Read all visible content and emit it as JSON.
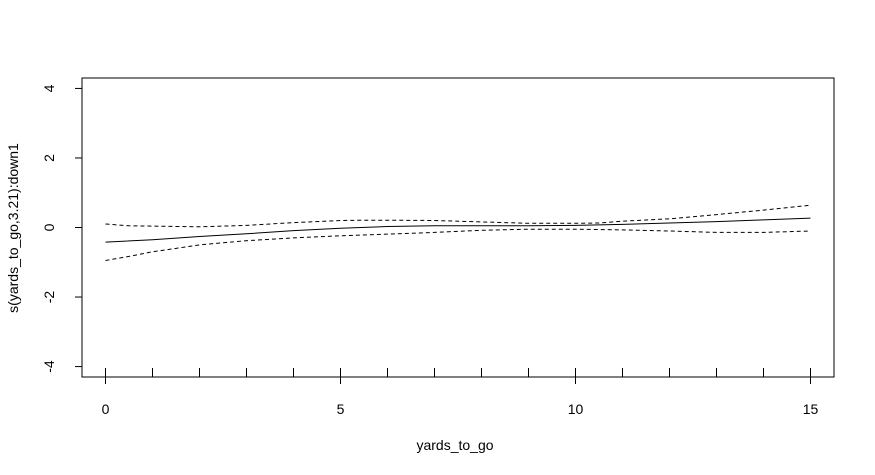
{
  "chart_data": {
    "type": "line",
    "xlabel": "yards_to_go",
    "ylabel": "s(yards_to_go,3.21):down1",
    "xlim": [
      -0.5,
      15.5
    ],
    "ylim": [
      -4.3,
      4.3
    ],
    "x_ticks": [
      0,
      5,
      10,
      15
    ],
    "x_tick_labels": [
      "0",
      "5",
      "10",
      "15"
    ],
    "x_rug": [
      0,
      1,
      2,
      3,
      4,
      5,
      6,
      7,
      8,
      9,
      10,
      11,
      12,
      13,
      14,
      15
    ],
    "y_ticks": [
      -4,
      -2,
      0,
      2,
      4
    ],
    "y_tick_labels": [
      "-4",
      "-2",
      "0",
      "2",
      "4"
    ],
    "grid": false,
    "series": [
      {
        "role": "estimate",
        "style": "solid",
        "x": [
          0,
          1,
          2,
          3,
          4,
          5,
          6,
          7,
          8,
          9,
          10,
          11,
          12,
          13,
          14,
          15
        ],
        "y": [
          -0.42,
          -0.35,
          -0.26,
          -0.18,
          -0.09,
          -0.02,
          0.03,
          0.05,
          0.05,
          0.05,
          0.06,
          0.09,
          0.13,
          0.17,
          0.22,
          0.27
        ]
      },
      {
        "role": "upper",
        "style": "dashed",
        "x": [
          0,
          0.5,
          1,
          2,
          3,
          4,
          5,
          5.5,
          6,
          7,
          8,
          9,
          10,
          10.5,
          11,
          12,
          13,
          14,
          15
        ],
        "y": [
          0.1,
          0.05,
          0.04,
          0.02,
          0.06,
          0.14,
          0.2,
          0.21,
          0.21,
          0.2,
          0.16,
          0.12,
          0.12,
          0.13,
          0.18,
          0.25,
          0.37,
          0.5,
          0.64
        ]
      },
      {
        "role": "lower",
        "style": "dashed",
        "x": [
          0,
          0.5,
          1,
          2,
          3,
          4,
          5,
          6,
          7,
          8,
          9,
          10,
          11,
          12,
          13,
          14,
          15
        ],
        "y": [
          -0.95,
          -0.83,
          -0.7,
          -0.5,
          -0.38,
          -0.3,
          -0.24,
          -0.19,
          -0.14,
          -0.08,
          -0.05,
          -0.05,
          -0.07,
          -0.1,
          -0.14,
          -0.14,
          -0.1
        ]
      }
    ]
  }
}
